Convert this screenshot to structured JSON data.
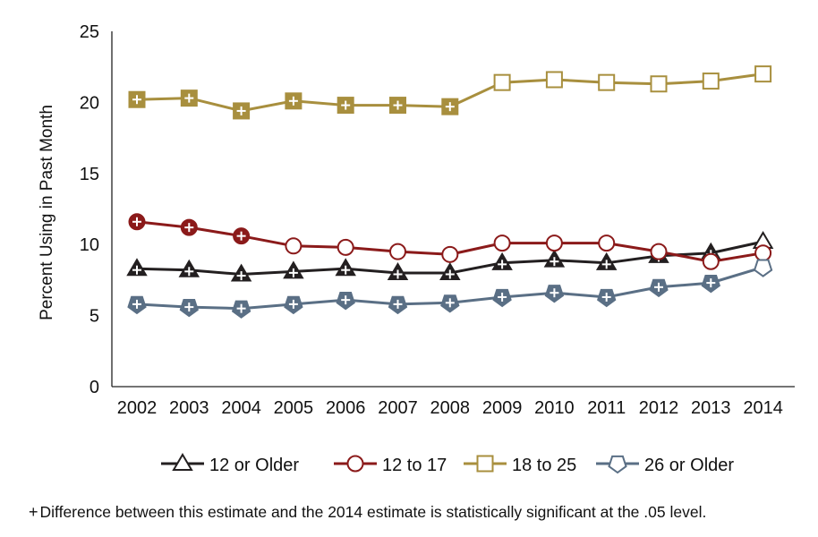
{
  "chart_data": {
    "type": "line",
    "title": "",
    "xlabel": "",
    "ylabel": "Percent Using in Past Month",
    "ylim": [
      0,
      25
    ],
    "yticks": [
      "0",
      "5",
      "10",
      "15",
      "20",
      "25"
    ],
    "categories": [
      "2002",
      "2003",
      "2004",
      "2005",
      "2006",
      "2007",
      "2008",
      "2009",
      "2010",
      "2011",
      "2012",
      "2013",
      "2014"
    ],
    "grid": false,
    "legend_position": "bottom",
    "series": [
      {
        "name": "12 or Older",
        "color": "#231f20",
        "marker": "triangle",
        "values": [
          8.3,
          8.2,
          7.9,
          8.1,
          8.3,
          8.0,
          8.0,
          8.7,
          8.9,
          8.7,
          9.2,
          9.4,
          10.2
        ],
        "significant": [
          true,
          true,
          true,
          true,
          true,
          true,
          true,
          true,
          true,
          true,
          true,
          true,
          false
        ]
      },
      {
        "name": "12 to 17",
        "color": "#8b1a1a",
        "marker": "circle",
        "values": [
          11.6,
          11.2,
          10.6,
          9.9,
          9.8,
          9.5,
          9.3,
          10.1,
          10.1,
          10.1,
          9.5,
          8.8,
          9.4
        ],
        "significant": [
          true,
          true,
          true,
          false,
          false,
          false,
          false,
          false,
          false,
          false,
          false,
          false,
          false
        ]
      },
      {
        "name": "18 to 25",
        "color": "#a88f3e",
        "marker": "square",
        "values": [
          20.2,
          20.3,
          19.4,
          20.1,
          19.8,
          19.8,
          19.7,
          21.4,
          21.6,
          21.4,
          21.3,
          21.5,
          22.0
        ],
        "significant": [
          true,
          true,
          true,
          true,
          true,
          true,
          true,
          false,
          false,
          false,
          false,
          false,
          false
        ]
      },
      {
        "name": "26 or Older",
        "color": "#5a6f85",
        "marker": "pentagon",
        "values": [
          5.8,
          5.6,
          5.5,
          5.8,
          6.1,
          5.8,
          5.9,
          6.3,
          6.6,
          6.3,
          7.0,
          7.3,
          8.4
        ],
        "significant": [
          true,
          true,
          true,
          true,
          true,
          true,
          true,
          true,
          true,
          true,
          true,
          true,
          false
        ]
      }
    ]
  },
  "footnote": {
    "symbol": "+",
    "text": "Difference between this estimate and the 2014 estimate is statistically significant at the .05 level."
  }
}
